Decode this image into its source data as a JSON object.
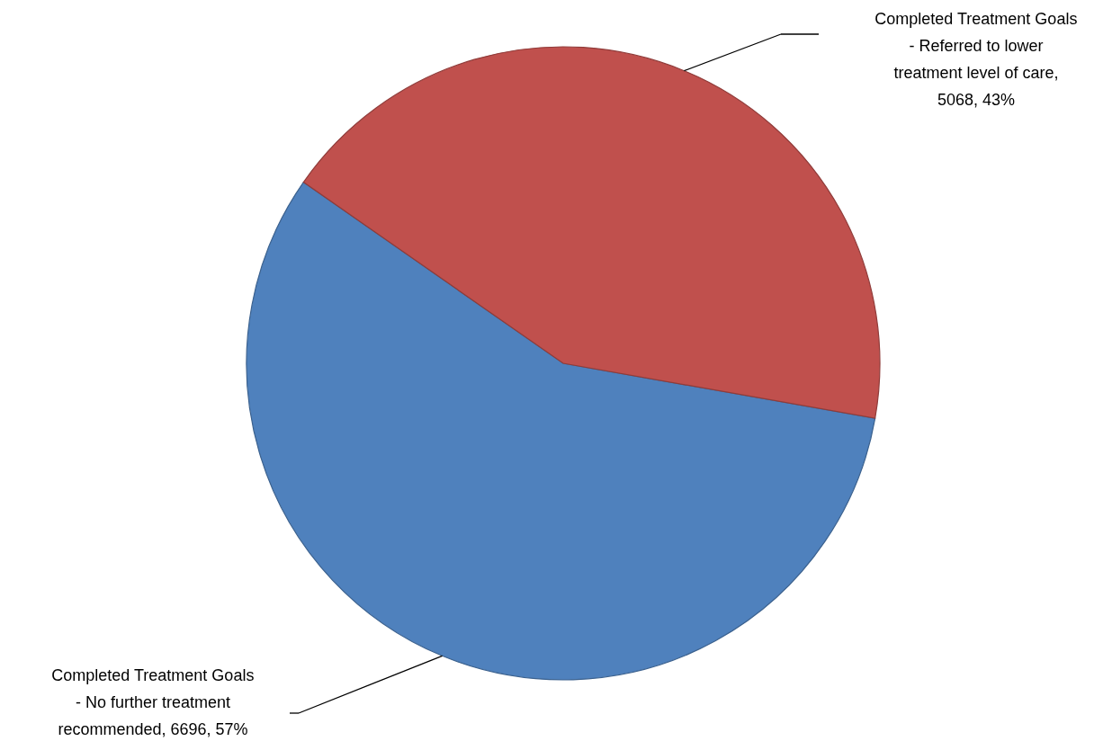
{
  "chart_data": {
    "type": "pie",
    "categories": [
      "Completed Treatment Goals - No further treatment recommended",
      "Completed Treatment Goals - Referred to lower treatment level of care"
    ],
    "values": [
      6696,
      5068
    ],
    "colors": [
      "#4f81bd",
      "#c0504d"
    ],
    "value_labels": [
      ", 6696, 57%",
      ", 5068, 43%"
    ]
  }
}
